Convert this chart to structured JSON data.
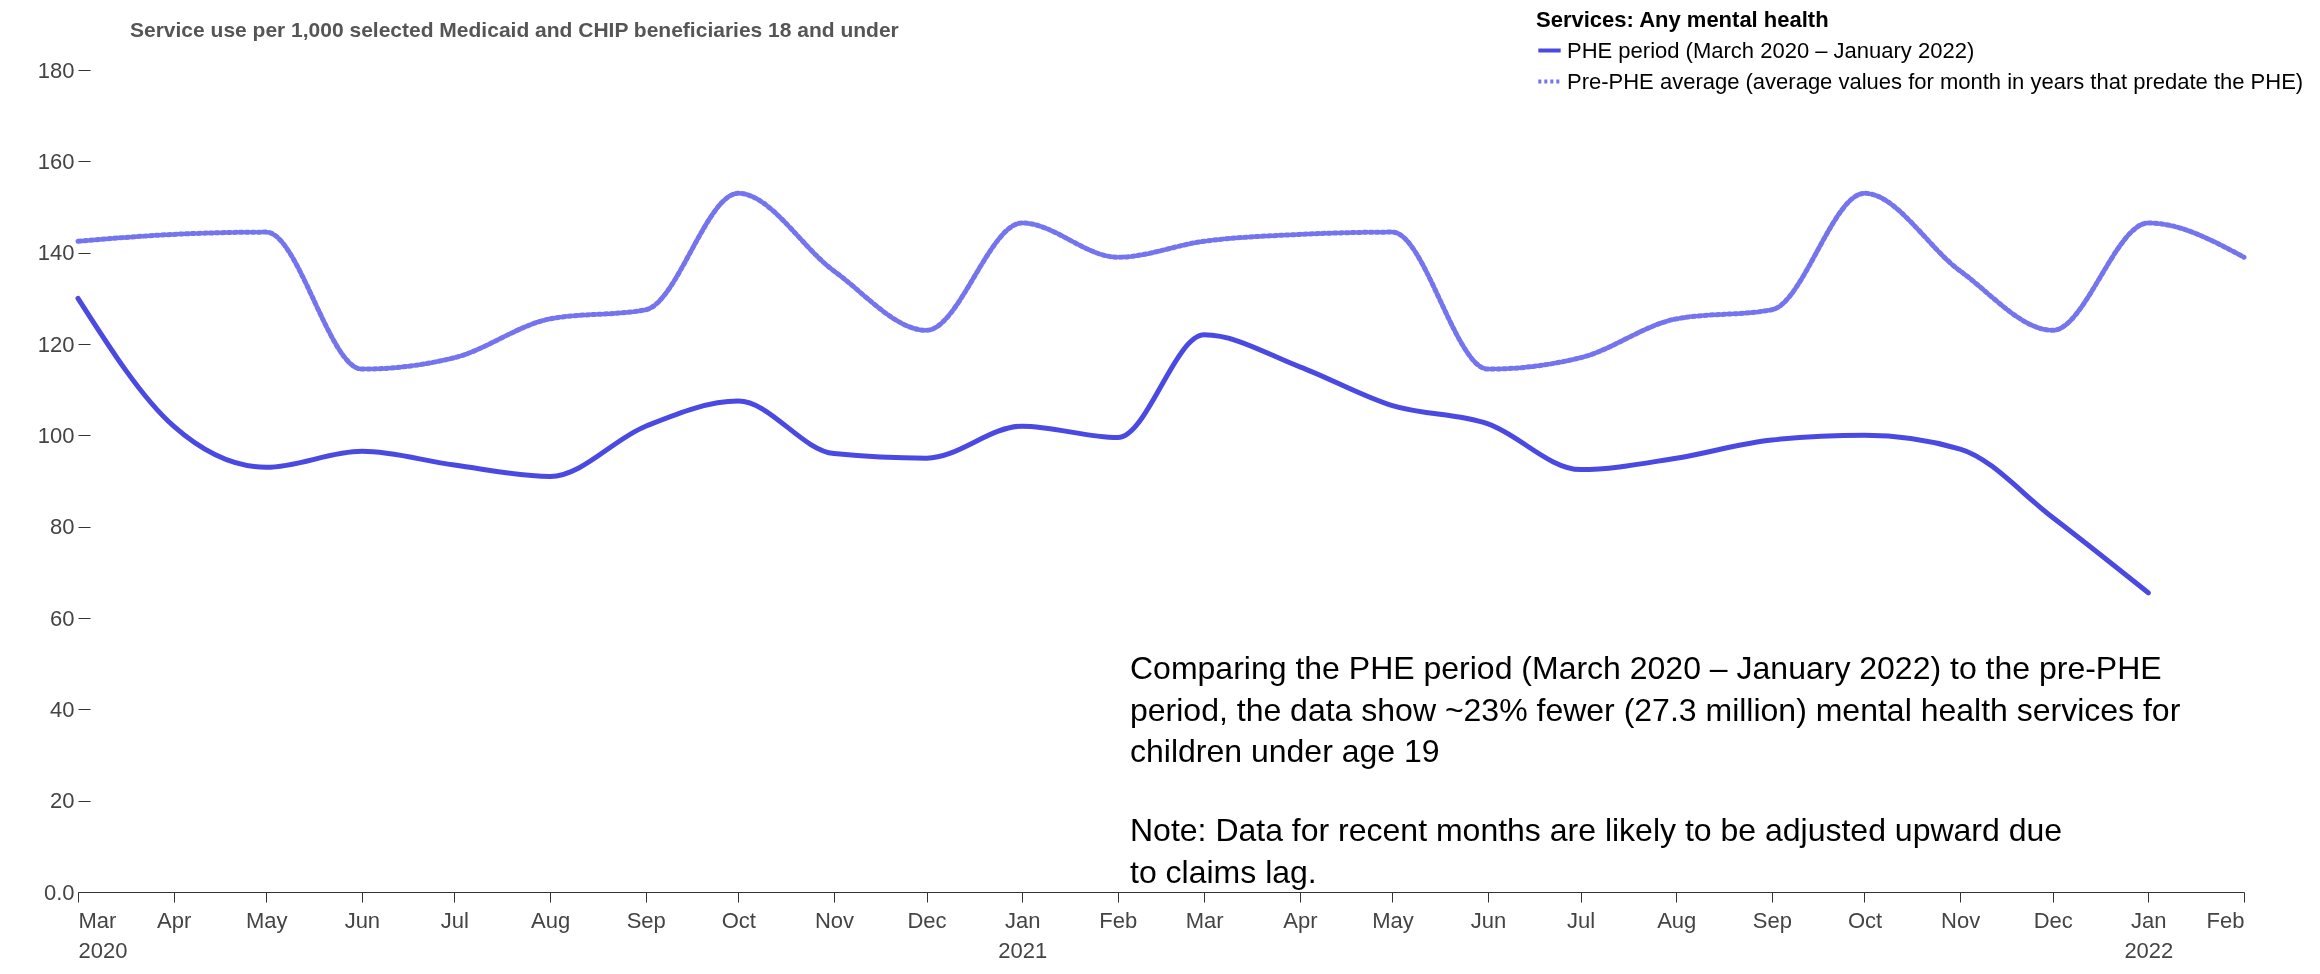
{
  "chart_data": {
    "type": "line",
    "title": "Service use per 1,000 selected Medicaid and CHIP beneficiaries 18 and under",
    "legend_title": "Services: Any mental health",
    "legend": "top right",
    "x": [
      "2020-03",
      "2020-04",
      "2020-05",
      "2020-06",
      "2020-07",
      "2020-08",
      "2020-09",
      "2020-10",
      "2020-11",
      "2020-12",
      "2021-01",
      "2021-02",
      "2021-03",
      "2021-04",
      "2021-05",
      "2021-06",
      "2021-07",
      "2021-08",
      "2021-09",
      "2021-10",
      "2021-11",
      "2021-12",
      "2022-01",
      "2022-02"
    ],
    "series": [
      {
        "name": "PHE period (March 2020 – January 2022)",
        "color": "#4a4ae3",
        "line_style": "solid",
        "values": [
          130,
          102,
          93,
          96.5,
          93.5,
          91,
          102,
          107.5,
          96,
          95,
          102,
          99.5,
          122,
          115,
          106.5,
          102.5,
          92.5,
          95,
          99,
          100,
          97,
          82,
          65.5,
          null
        ]
      },
      {
        "name": "Pre-PHE average (average values for month in years that predate the PHE)",
        "color": "#7474ee",
        "line_style": "dotted",
        "values": [
          142.5,
          144,
          144.5,
          114.5,
          117,
          125.5,
          127.5,
          153,
          136,
          123,
          146.5,
          139,
          142.5,
          144,
          144.5,
          114.5,
          117,
          125.5,
          127.5,
          153,
          136,
          123,
          146.5,
          139
        ]
      }
    ],
    "xlim": [
      "2020-03",
      "2022-02"
    ],
    "xticks": [
      {
        "value": "2020-03",
        "label": "Mar\n2020"
      },
      {
        "value": "2020-04",
        "label": "Apr"
      },
      {
        "value": "2020-05",
        "label": "May"
      },
      {
        "value": "2020-06",
        "label": "Jun"
      },
      {
        "value": "2020-07",
        "label": "Jul"
      },
      {
        "value": "2020-08",
        "label": "Aug"
      },
      {
        "value": "2020-09",
        "label": "Sep"
      },
      {
        "value": "2020-10",
        "label": "Oct"
      },
      {
        "value": "2020-11",
        "label": "Nov"
      },
      {
        "value": "2020-12",
        "label": "Dec"
      },
      {
        "value": "2021-01",
        "label": "Jan\n2021"
      },
      {
        "value": "2021-02",
        "label": "Feb"
      },
      {
        "value": "2021-03",
        "label": "Mar"
      },
      {
        "value": "2021-04",
        "label": "Apr"
      },
      {
        "value": "2021-05",
        "label": "May"
      },
      {
        "value": "2021-06",
        "label": "Jun"
      },
      {
        "value": "2021-07",
        "label": "Jul"
      },
      {
        "value": "2021-08",
        "label": "Aug"
      },
      {
        "value": "2021-09",
        "label": "Sep"
      },
      {
        "value": "2021-10",
        "label": "Oct"
      },
      {
        "value": "2021-11",
        "label": "Nov"
      },
      {
        "value": "2021-12",
        "label": "Dec"
      },
      {
        "value": "2022-01",
        "label": "Jan\n2022"
      },
      {
        "value": "2022-02",
        "label": "Feb"
      }
    ],
    "ylim": [
      0,
      180
    ],
    "yticks": [
      {
        "value": 0,
        "label": "0.0"
      },
      20,
      40,
      60,
      80,
      100,
      120,
      140,
      160,
      180
    ],
    "grid": false,
    "annotations": [
      "Comparing the PHE period (March 2020 – January 2022) to the pre-PHE period, the data show ~23% fewer (27.3 million) mental health services for children under age 19",
      "Note: Data for recent months are likely to be adjusted upward due to claims lag."
    ]
  }
}
